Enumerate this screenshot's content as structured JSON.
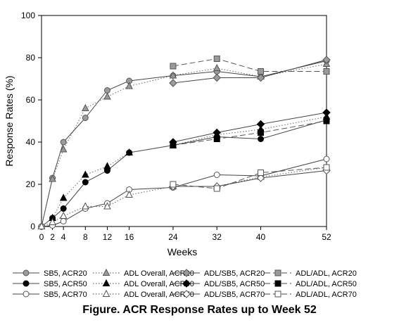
{
  "figure_caption": "Figure. ACR Response Rates up to Week 52",
  "chart_data": {
    "type": "line",
    "xlabel": "Weeks",
    "ylabel": "Response Rates (%)",
    "xlim": [
      0,
      52
    ],
    "ylim": [
      0,
      100
    ],
    "x_ticks": [
      0,
      2,
      4,
      8,
      12,
      16,
      24,
      32,
      40,
      52
    ],
    "y_ticks": [
      0,
      20,
      40,
      60,
      80,
      100
    ],
    "grid": false,
    "legend_position": "bottom",
    "series": [
      {
        "name": "SB5, ACR20",
        "line": "solid",
        "marker": "circle",
        "fill": "#9a9a9a",
        "x": [
          0,
          2,
          4,
          8,
          12,
          16,
          24,
          32,
          40,
          52
        ],
        "values": [
          0,
          23,
          40,
          51.5,
          64.5,
          69,
          71.5,
          73.5,
          71,
          78.5
        ]
      },
      {
        "name": "ADL Overall, ACR20",
        "line": "dotted",
        "marker": "triangle",
        "fill": "#9a9a9a",
        "x": [
          0,
          2,
          4,
          8,
          12,
          16,
          24,
          32,
          40,
          52
        ],
        "values": [
          0,
          22.5,
          36.5,
          56,
          61.5,
          66.5,
          71.5,
          75,
          71,
          77
        ]
      },
      {
        "name": "ADL/SB5, ACR20",
        "line": "solid",
        "marker": "diamond",
        "fill": "#9a9a9a",
        "x": [
          24,
          32,
          40,
          52
        ],
        "values": [
          68,
          70.5,
          70.5,
          79
        ]
      },
      {
        "name": "ADL/ADL, ACR20",
        "line": "dashed",
        "marker": "square",
        "fill": "#9a9a9a",
        "x": [
          24,
          32,
          40,
          52
        ],
        "values": [
          76,
          79.5,
          73.5,
          73.5
        ]
      },
      {
        "name": "SB5, ACR50",
        "line": "solid",
        "marker": "circle",
        "fill": "#000000",
        "x": [
          0,
          2,
          4,
          8,
          12,
          16,
          24,
          32,
          40,
          52
        ],
        "values": [
          0,
          4,
          8.5,
          21,
          26.5,
          35,
          38.5,
          42.5,
          41.5,
          50.5
        ]
      },
      {
        "name": "ADL Overall, ACR50",
        "line": "dotted",
        "marker": "triangle",
        "fill": "#000000",
        "x": [
          0,
          2,
          4,
          8,
          12,
          16,
          24,
          32,
          40,
          52
        ],
        "values": [
          0,
          4,
          13.5,
          24.5,
          28.5,
          35,
          38.5,
          43.5,
          46,
          52
        ]
      },
      {
        "name": "ADL/SB5, ACR50",
        "line": "solid",
        "marker": "diamond",
        "fill": "#000000",
        "x": [
          24,
          32,
          40,
          52
        ],
        "values": [
          40,
          44.5,
          48.5,
          54
        ]
      },
      {
        "name": "ADL/ADL, ACR50",
        "line": "dashed",
        "marker": "square",
        "fill": "#000000",
        "x": [
          24,
          32,
          40,
          52
        ],
        "values": [
          38.5,
          41.5,
          44.5,
          50
        ]
      },
      {
        "name": "SB5, ACR70",
        "line": "solid",
        "marker": "circle",
        "fill": "#ffffff",
        "x": [
          0,
          2,
          4,
          8,
          12,
          16,
          24,
          32,
          40,
          52
        ],
        "values": [
          0,
          0.5,
          2.5,
          8.5,
          11,
          17.5,
          18.5,
          24.5,
          24,
          32
        ]
      },
      {
        "name": "ADL Overall, ACR70",
        "line": "dotted",
        "marker": "triangle",
        "fill": "#ffffff",
        "x": [
          0,
          2,
          4,
          8,
          12,
          16,
          24,
          32,
          40,
          52
        ],
        "values": [
          0,
          2,
          5,
          9.5,
          9.5,
          15,
          19,
          19,
          23.5,
          28
        ]
      },
      {
        "name": "ADL/SB5, ACR70",
        "line": "solid",
        "marker": "diamond",
        "fill": "#ffffff",
        "x": [
          24,
          32,
          40,
          52
        ],
        "values": [
          19,
          19,
          23,
          26.5
        ]
      },
      {
        "name": "ADL/ADL, ACR70",
        "line": "dashed",
        "marker": "square",
        "fill": "#ffffff",
        "x": [
          24,
          32,
          40,
          52
        ],
        "values": [
          20,
          18,
          25.5,
          28
        ]
      }
    ]
  }
}
